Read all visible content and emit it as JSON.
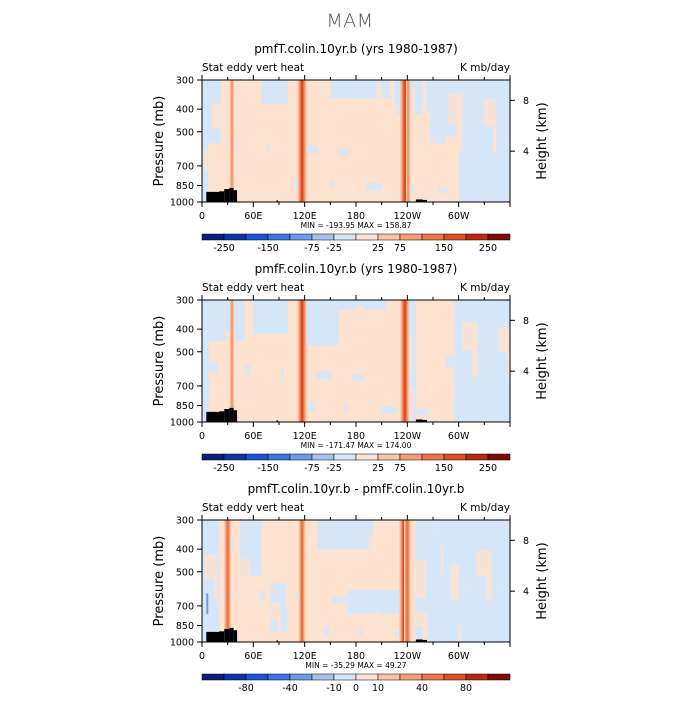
{
  "figure": {
    "title": "MAM"
  },
  "colors": {
    "bands": [
      "#0a1f7a",
      "#0d36a8",
      "#1c54d2",
      "#3b76e3",
      "#6b9be8",
      "#a3c2f0",
      "#d5e6f8",
      "#fde2d0",
      "#f7c4a5",
      "#f39d74",
      "#ec7649",
      "#dd4f23",
      "#b8290e",
      "#7e0b05"
    ],
    "background_pos": "#fde2d0",
    "background_neg": "#d5e6f8"
  },
  "chart_data": [
    {
      "type": "heatmap",
      "title": "pmfT.colin.10yr.b (yrs 1980-1987)",
      "left_label": "Stat eddy vert heat",
      "right_label": "K mb/day",
      "ylabel": "Pressure (mb)",
      "ylabel_right": "Height (km)",
      "y_ticks": [
        300,
        400,
        500,
        700,
        850,
        1000
      ],
      "y_ticks_right": [
        4,
        8
      ],
      "x_ticks": [
        "0",
        "60E",
        "120E",
        "180",
        "120W",
        "60W"
      ],
      "minmax": "MIN = -193.95   MAX = 158.87",
      "colorbar_labels": [
        "-250",
        "-150",
        "-75",
        "-25",
        "25",
        "75",
        "150",
        "250"
      ],
      "field": {
        "base": "positive",
        "negative_regions": [
          {
            "lon": [
              0,
              7
            ],
            "p": [
              300,
              1000
            ]
          },
          {
            "lon": [
              0,
              22
            ],
            "p": [
              300,
              560
            ]
          },
          {
            "lon": [
              70,
              100
            ],
            "p": [
              300,
              380
            ]
          },
          {
            "lon": [
              150,
              220
            ],
            "p": [
              300,
              360
            ]
          },
          {
            "lon": [
              225,
              258
            ],
            "p": [
              300,
              420
            ]
          },
          {
            "lon": [
              262,
              300
            ],
            "p": [
              300,
              520
            ]
          },
          {
            "lon": [
              300,
              360
            ],
            "p": [
              300,
              1000
            ]
          }
        ],
        "positive_streaks": [
          {
            "lon": 117,
            "amp": 3
          },
          {
            "lon": 237,
            "amp": 3
          },
          {
            "lon": 35,
            "amp": 1
          },
          {
            "lon": 241,
            "amp": 1
          }
        ]
      }
    },
    {
      "type": "heatmap",
      "title": "pmfF.colin.10yr.b (yrs 1980-1987)",
      "left_label": "Stat eddy vert heat",
      "right_label": "K mb/day",
      "ylabel": "Pressure (mb)",
      "ylabel_right": "Height (km)",
      "y_ticks": [
        300,
        400,
        500,
        700,
        850,
        1000
      ],
      "y_ticks_right": [
        4,
        8
      ],
      "x_ticks": [
        "0",
        "60E",
        "120E",
        "180",
        "120W",
        "60W"
      ],
      "minmax": "MIN = -171.47   MAX = 174.00",
      "colorbar_labels": [
        "-250",
        "-150",
        "-75",
        "-25",
        "25",
        "75",
        "150",
        "250"
      ],
      "field": {
        "base": "positive",
        "negative_regions": [
          {
            "lon": [
              0,
              8
            ],
            "p": [
              300,
              1000
            ]
          },
          {
            "lon": [
              8,
              50
            ],
            "p": [
              300,
              450
            ]
          },
          {
            "lon": [
              60,
              100
            ],
            "p": [
              300,
              420
            ]
          },
          {
            "lon": [
              120,
              160
            ],
            "p": [
              300,
              470
            ]
          },
          {
            "lon": [
              160,
              215
            ],
            "p": [
              300,
              330
            ]
          },
          {
            "lon": [
              295,
              360
            ],
            "p": [
              300,
              1000
            ]
          },
          {
            "lon": [
              240,
              250
            ],
            "p": [
              300,
              1000
            ]
          }
        ],
        "positive_streaks": [
          {
            "lon": 117,
            "amp": 3
          },
          {
            "lon": 237,
            "amp": 3
          },
          {
            "lon": 35,
            "amp": 1
          }
        ]
      }
    },
    {
      "type": "heatmap",
      "title": "pmfT.colin.10yr.b - pmfF.colin.10yr.b",
      "left_label": "Stat eddy vert heat",
      "right_label": "K mb/day",
      "ylabel": "Pressure (mb)",
      "ylabel_right": "Height (km)",
      "y_ticks": [
        300,
        400,
        500,
        700,
        850,
        1000
      ],
      "y_ticks_right": [
        4,
        8
      ],
      "x_ticks": [
        "0",
        "60E",
        "120E",
        "180",
        "120W",
        "60W"
      ],
      "minmax": "MIN = -35.29   MAX =  49.27",
      "colorbar_labels": [
        "-80",
        "-40",
        "-10",
        "0",
        "10",
        "40",
        "80"
      ],
      "field": {
        "base": "mixed",
        "negative_regions": [
          {
            "lon": [
              0,
              20
            ],
            "p": [
              300,
              1000
            ]
          },
          {
            "lon": [
              45,
              70
            ],
            "p": [
              300,
              520
            ]
          },
          {
            "lon": [
              80,
              100
            ],
            "p": [
              560,
              900
            ]
          },
          {
            "lon": [
              135,
              200
            ],
            "p": [
              300,
              400
            ]
          },
          {
            "lon": [
              170,
              235
            ],
            "p": [
              600,
              760
            ]
          },
          {
            "lon": [
              250,
              320
            ],
            "p": [
              300,
              1000
            ]
          },
          {
            "lon": [
              320,
              360
            ],
            "p": [
              300,
              1000
            ]
          }
        ],
        "positive_streaks": [
          {
            "lon": 30,
            "amp": 2
          },
          {
            "lon": 117,
            "amp": 2
          },
          {
            "lon": 236,
            "amp": 3
          },
          {
            "lon": 240,
            "amp": 2
          }
        ]
      }
    }
  ]
}
